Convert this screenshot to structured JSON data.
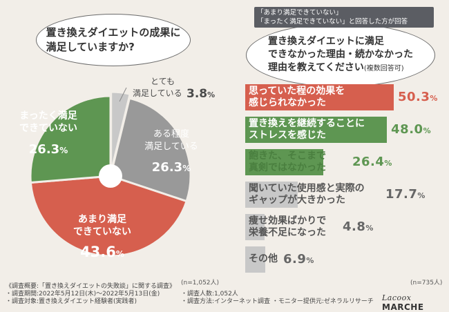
{
  "left_question": "置き換えダイエットの成果に\n満足していますか?",
  "note_lines": [
    "「あまり満足できていない」",
    "「まったく満足できていない」と回答した方が回答"
  ],
  "right_question": {
    "lines": [
      "置き換えダイエットに満足",
      "できなかった理由・続かなかった"
    ],
    "last_line": "理由を教えてください",
    "suffix": "(複数回答可)"
  },
  "colors": {
    "red": "#d65f4e",
    "green": "#5e9652",
    "gray": "#999999",
    "lightgray": "#c8c8c8",
    "bg": "#f2eee8"
  },
  "chart_data": [
    {
      "type": "pie",
      "title": "置き換えダイエットの成果に満足していますか?",
      "unit": "%",
      "slices": [
        {
          "label": "とても\n満足している",
          "value": 3.8,
          "color": "#c8c8c8"
        },
        {
          "label": "ある程度\n満足している",
          "value": 26.3,
          "color": "#999999"
        },
        {
          "label": "あまり満足\nできていない",
          "value": 43.6,
          "color": "#d65f4e"
        },
        {
          "label": "まったく満足\nできていない",
          "value": 26.3,
          "color": "#5e9652"
        }
      ],
      "n_note": "(n=1,052人)"
    },
    {
      "type": "bar",
      "orientation": "horizontal",
      "title": "置き換えダイエットに満足できなかった理由・続かなかった理由を教えてください(複数回答可)",
      "unit": "%",
      "xlim": [
        0,
        50.3
      ],
      "bars": [
        {
          "label": "思っていた程の効果を\n感じられなかった",
          "value": 50.3,
          "color": "#d65f4e"
        },
        {
          "label": "置き換えを継続することに\nストレスを感じた",
          "value": 48.0,
          "color": "#5e9652"
        },
        {
          "label": "飽きた、そこまで\n真剣ではなかった",
          "value": 26.4,
          "color": "#5e9652"
        },
        {
          "label": "聞いていた使用感と実際の\nギャップが大きかった",
          "value": 17.7,
          "color": "#c8c8c8"
        },
        {
          "label": "痩せ効果ばかりで\n栄養不足になった",
          "value": 4.8,
          "color": "#c8c8c8"
        },
        {
          "label": "その他",
          "value": 6.9,
          "color": "#c8c8c8"
        }
      ],
      "n_note": "(n=735人)"
    }
  ],
  "footer": {
    "left": [
      "《調査概要:「置き換えダイエットの失敗談」に関する調査》",
      "・調査期間:2022年5月12日(木)〜2022年5月13日(金)",
      "・調査対象:置き換えダイエット経験者(実践者)"
    ],
    "right": [
      "・調査人数:1,052人",
      "・調査方法:インターネット調査 ・モニター提供元:ゼネラルリサーチ"
    ]
  },
  "logo": {
    "script": "Lacoox",
    "bold": "MARCHE"
  }
}
